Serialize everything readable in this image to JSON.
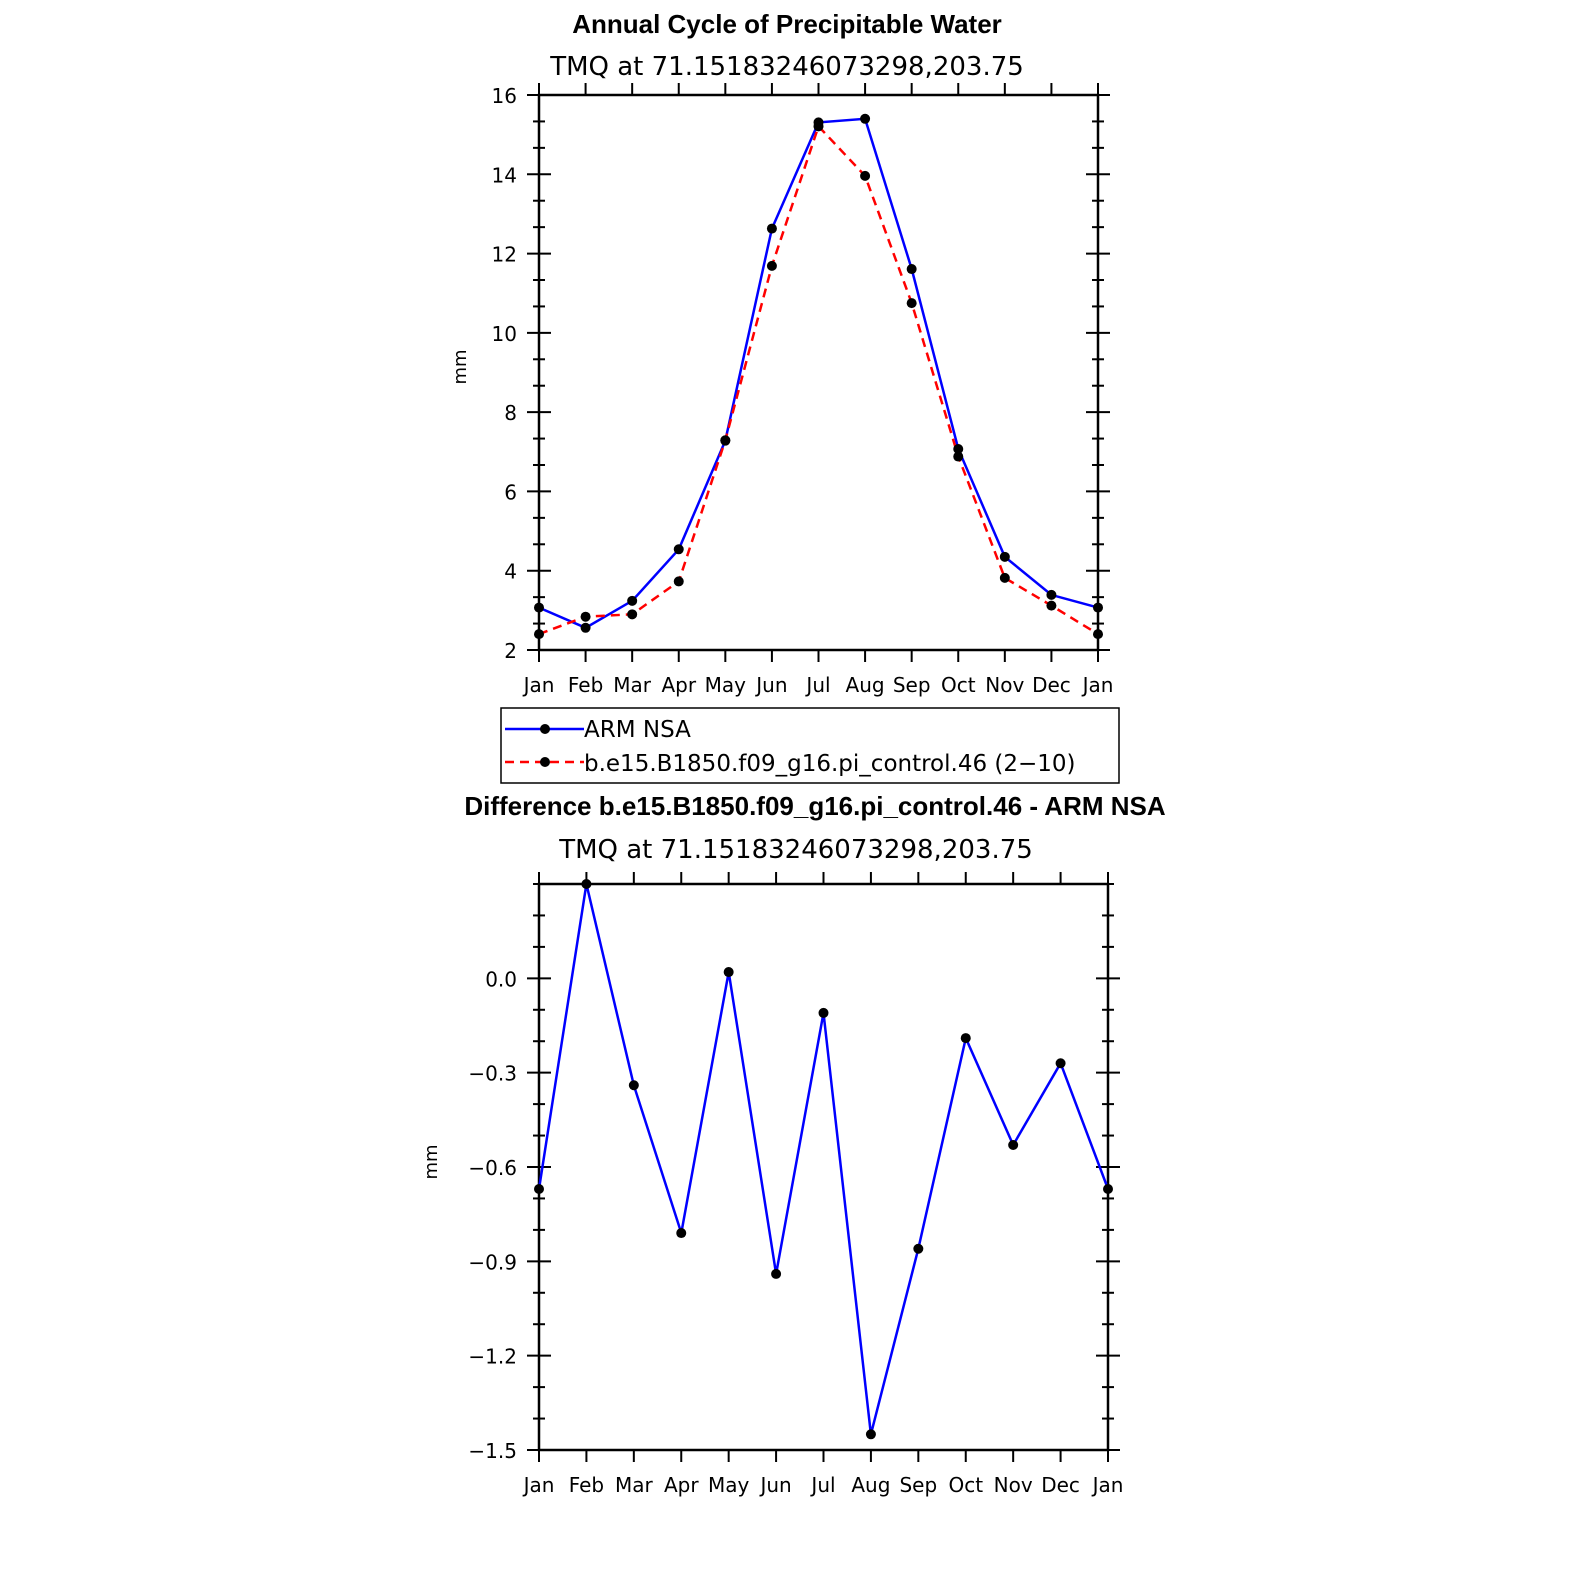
{
  "chart_data": [
    {
      "type": "line",
      "title": "Annual Cycle of Precipitable Water",
      "subtitle": "TMQ at 71.15183246073298,203.75",
      "xlabel": "",
      "ylabel": "mm",
      "categories": [
        "Jan",
        "Feb",
        "Mar",
        "Apr",
        "May",
        "Jun",
        "Jul",
        "Aug",
        "Sep",
        "Oct",
        "Nov",
        "Dec",
        "Jan"
      ],
      "ylim": [
        2,
        16
      ],
      "yticks": [
        2,
        4,
        6,
        8,
        10,
        12,
        14,
        16
      ],
      "ytick_labels": [
        "2",
        "4",
        "6",
        "8",
        "10",
        "12",
        "14",
        "16"
      ],
      "grid": false,
      "legend_position": "bottom",
      "series": [
        {
          "name": "ARM NSA",
          "color": "#0000ff",
          "dash": "solid",
          "values": [
            3.07,
            2.56,
            3.24,
            4.54,
            7.28,
            12.63,
            15.31,
            15.4,
            11.61,
            7.07,
            4.35,
            3.39,
            3.07
          ]
        },
        {
          "name": "b.e15.B1850.f09_g16.pi_control.46 (2−10)",
          "color": "#ff0000",
          "dash": "dashed",
          "values": [
            2.4,
            2.84,
            2.9,
            3.73,
            7.29,
            11.69,
            15.21,
            13.96,
            10.75,
            6.88,
            3.82,
            3.12,
            2.4
          ]
        }
      ]
    },
    {
      "type": "line",
      "title": "Difference b.e15.B1850.f09_g16.pi_control.46 - ARM NSA",
      "subtitle": "TMQ at 71.15183246073298,203.75",
      "xlabel": "",
      "ylabel": "mm",
      "categories": [
        "Jan",
        "Feb",
        "Mar",
        "Apr",
        "May",
        "Jun",
        "Jul",
        "Aug",
        "Sep",
        "Oct",
        "Nov",
        "Dec",
        "Jan"
      ],
      "ylim": [
        -1.5,
        0.3
      ],
      "yticks": [
        -1.5,
        -1.2,
        -0.9,
        -0.6,
        -0.3,
        0.0
      ],
      "ytick_labels": [
        "−1.5",
        "−1.2",
        "−0.9",
        "−0.6",
        "−0.3",
        "0.0"
      ],
      "grid": false,
      "series": [
        {
          "name": "",
          "color": "#0000ff",
          "dash": "solid",
          "values": [
            -0.67,
            0.3,
            -0.34,
            -0.81,
            0.02,
            -0.94,
            -0.11,
            -1.45,
            -0.86,
            -0.19,
            -0.53,
            -0.27,
            -0.67
          ]
        }
      ]
    }
  ]
}
